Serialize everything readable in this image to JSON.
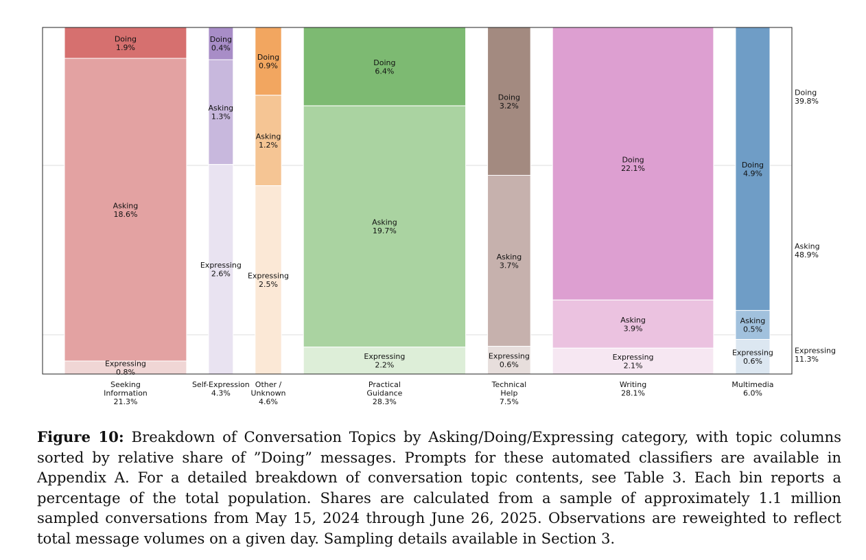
{
  "chart_data": {
    "type": "mosaic",
    "stack_order": [
      "Doing",
      "Asking",
      "Expressing"
    ],
    "colors": {
      "Seeking Information": [
        "#d6706f",
        "#e3a2a2",
        "#f0d6d5"
      ],
      "Self-Expression": [
        "#a88dc7",
        "#c8b8dd",
        "#e9e3f1"
      ],
      "Other / Unknown": [
        "#f2a660",
        "#f5c594",
        "#fbe8d6"
      ],
      "Practical Guidance": [
        "#7dba72",
        "#aad3a1",
        "#ddeed8"
      ],
      "Technical Help": [
        "#a38a80",
        "#c6b1ad",
        "#e7dedc"
      ],
      "Writing": [
        "#dd9fd1",
        "#ebc2e0",
        "#f6e7f2"
      ],
      "Multimedia": [
        "#6f9dc6",
        "#a1c1dd",
        "#dce7f1"
      ]
    },
    "columns": [
      {
        "label_lines": [
          "Seeking",
          "Information",
          "21.3%"
        ],
        "share": 21.3,
        "segments": [
          {
            "name": "Doing",
            "value": 1.9,
            "label": "1.9%"
          },
          {
            "name": "Asking",
            "value": 18.6,
            "label": "18.6%"
          },
          {
            "name": "Expressing",
            "value": 0.8,
            "label": "0.8%"
          }
        ]
      },
      {
        "label_lines": [
          "Self-Expression",
          "4.3%"
        ],
        "share": 4.3,
        "segments": [
          {
            "name": "Doing",
            "value": 0.4,
            "label": "0.4%"
          },
          {
            "name": "Asking",
            "value": 1.3,
            "label": "1.3%"
          },
          {
            "name": "Expressing",
            "value": 2.6,
            "label": "2.6%"
          }
        ]
      },
      {
        "label_lines": [
          "Other /",
          "Unknown",
          "4.6%"
        ],
        "share": 4.6,
        "segments": [
          {
            "name": "Doing",
            "value": 0.9,
            "label": "0.9%"
          },
          {
            "name": "Asking",
            "value": 1.2,
            "label": "1.2%"
          },
          {
            "name": "Expressing",
            "value": 2.5,
            "label": "2.5%"
          }
        ]
      },
      {
        "label_lines": [
          "Practical",
          "Guidance",
          "28.3%"
        ],
        "share": 28.3,
        "segments": [
          {
            "name": "Doing",
            "value": 6.4,
            "label": "6.4%"
          },
          {
            "name": "Asking",
            "value": 19.7,
            "label": "19.7%"
          },
          {
            "name": "Expressing",
            "value": 2.2,
            "label": "2.2%"
          }
        ]
      },
      {
        "label_lines": [
          "Technical",
          "Help",
          "7.5%"
        ],
        "share": 7.5,
        "segments": [
          {
            "name": "Doing",
            "value": 3.2,
            "label": "3.2%"
          },
          {
            "name": "Asking",
            "value": 3.7,
            "label": "3.7%"
          },
          {
            "name": "Expressing",
            "value": 0.6,
            "label": "0.6%"
          }
        ]
      },
      {
        "label_lines": [
          "Writing",
          "28.1%"
        ],
        "share": 28.1,
        "segments": [
          {
            "name": "Doing",
            "value": 22.1,
            "label": "22.1%"
          },
          {
            "name": "Asking",
            "value": 3.9,
            "label": "3.9%"
          },
          {
            "name": "Expressing",
            "value": 2.1,
            "label": "2.1%"
          }
        ]
      },
      {
        "label_lines": [
          "Multimedia",
          "6.0%"
        ],
        "share": 6.0,
        "segments": [
          {
            "name": "Doing",
            "value": 4.9,
            "label": "4.9%"
          },
          {
            "name": "Asking",
            "value": 0.5,
            "label": "0.5%"
          },
          {
            "name": "Expressing",
            "value": 0.6,
            "label": "0.6%"
          }
        ]
      }
    ],
    "totals": [
      {
        "name": "Doing",
        "value": 39.8,
        "label": "39.8%"
      },
      {
        "name": "Asking",
        "value": 48.9,
        "label": "48.9%"
      },
      {
        "name": "Expressing",
        "value": 11.3,
        "label": "11.3%"
      }
    ]
  },
  "caption": {
    "label": "Figure 10:",
    "text": "Breakdown of Conversation Topics by Asking/Doing/Expressing category, with topic columns sorted by relative share of ”Doing” messages. Prompts for these automated classifiers are available in Appendix A. For a detailed breakdown of conversation topic contents, see Table 3. Each bin reports a percentage of the total population. Shares are calculated from a sample of approximately 1.1 million sampled conversations from May 15, 2024 through June 26, 2025. Observations are reweighted to reflect total message volumes on a given day. Sampling details available in Section 3."
  }
}
